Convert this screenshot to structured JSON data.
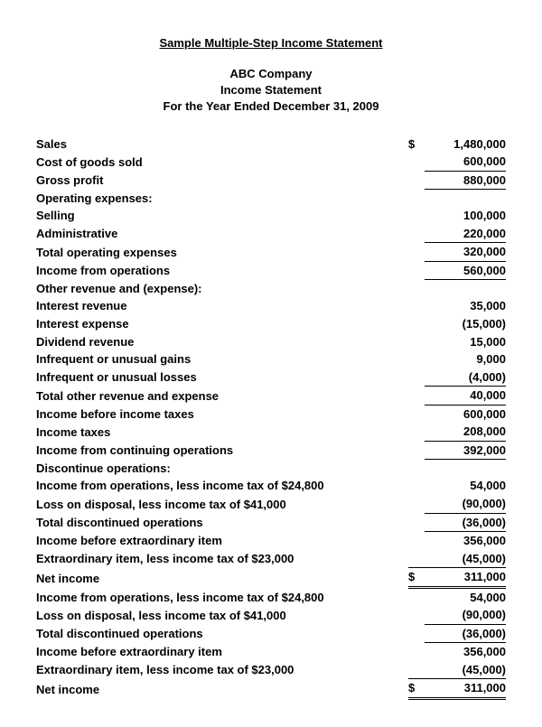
{
  "title": "Sample Multiple-Step Income Statement",
  "company": "ABC Company",
  "stmt_title": "Income Statement",
  "period": "For the Year Ended December 31, 2009",
  "currency": "$",
  "rows": {
    "sales": {
      "label": "Sales",
      "value": "1,480,000"
    },
    "cogs": {
      "label": "Cost of goods sold",
      "value": "600,000"
    },
    "gross_profit": {
      "label": "Gross profit",
      "value": "880,000"
    },
    "opex_header": {
      "label": "Operating expenses:"
    },
    "selling": {
      "label": "Selling",
      "value": "100,000"
    },
    "admin": {
      "label": "Administrative",
      "value": "220,000"
    },
    "total_opex": {
      "label": "Total operating expenses",
      "value": "320,000"
    },
    "income_ops": {
      "label": "Income from operations",
      "value": "560,000"
    },
    "other_header": {
      "label": "Other revenue and (expense):"
    },
    "int_rev": {
      "label": "Interest revenue",
      "value": "35,000"
    },
    "int_exp": {
      "label": "Interest expense",
      "value": "(15,000)"
    },
    "div_rev": {
      "label": "Dividend revenue",
      "value": "15,000"
    },
    "unusual_gain": {
      "label": "Infrequent or unusual gains",
      "value": "9,000"
    },
    "unusual_loss": {
      "label": "Infrequent or unusual losses",
      "value": "(4,000)"
    },
    "total_other": {
      "label": "Total other revenue and expense",
      "value": "40,000"
    },
    "income_before_tax": {
      "label": "Income before income taxes",
      "value": "600,000"
    },
    "income_tax": {
      "label": "Income taxes",
      "value": "208,000"
    },
    "income_cont": {
      "label": "Income from continuing operations",
      "value": "392,000"
    },
    "disc_header": {
      "label": "Discontinue operations:"
    },
    "disc_income": {
      "label": "Income from operations, less income tax of $24,800",
      "value": "54,000"
    },
    "disc_loss": {
      "label": "Loss on disposal, less income tax of $41,000",
      "value": "(90,000)"
    },
    "total_disc": {
      "label": "Total discontinued operations",
      "value": "(36,000)"
    },
    "income_before_extra": {
      "label": "Income before extraordinary item",
      "value": "356,000"
    },
    "extra_item": {
      "label": "Extraordinary item, less income tax of $23,000",
      "value": "(45,000)"
    },
    "net_income": {
      "label": "Net income",
      "value": "311,000"
    }
  }
}
